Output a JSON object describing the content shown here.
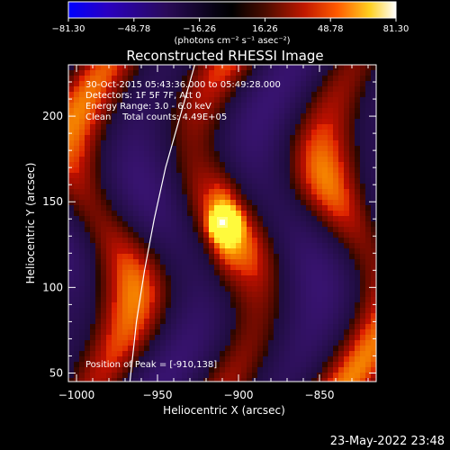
{
  "colorbar": {
    "ticks": [
      "−81.30",
      "−48.78",
      "−16.26",
      "16.26",
      "48.78",
      "81.30"
    ],
    "tick_values": [
      -81.3,
      -48.78,
      -16.26,
      16.26,
      48.78,
      81.3
    ],
    "range": [
      -81.3,
      81.3
    ],
    "unit_label": "(photons cm⁻² s⁻¹ asec⁻²)",
    "colormap": [
      "#0000ff",
      "#3a00a8",
      "#140830",
      "#000000",
      "#3a0c00",
      "#a01000",
      "#ff3000",
      "#ffa000",
      "#ffff40",
      "#ffffff"
    ]
  },
  "chart_data": {
    "type": "heatmap",
    "title": "Reconstructed RHESSI Image",
    "xlabel": "Heliocentric X (arcsec)",
    "ylabel": "Heliocentric Y (arcsec)",
    "xlim": [
      -1005,
      -815
    ],
    "ylim": [
      45,
      230
    ],
    "xticks": [
      -1000,
      -950,
      -900,
      -850
    ],
    "xtick_labels": [
      "−1000",
      "−950",
      "−900",
      "−850"
    ],
    "yticks": [
      50,
      100,
      150,
      200
    ],
    "ytick_labels": [
      "50",
      "100",
      "150",
      "200"
    ],
    "peak": {
      "x": -910,
      "y": 138,
      "value": 81.3
    },
    "limb_curve": [
      [
        -967,
        45
      ],
      [
        -963,
        80
      ],
      [
        -958,
        110
      ],
      [
        -952,
        140
      ],
      [
        -945,
        170
      ],
      [
        -936,
        200
      ],
      [
        -927,
        230
      ]
    ],
    "annotations": [
      "30-Oct-2015 05:43:36.000 to 05:49:28.000",
      "Detectors: 1F 5F 7F, Att 0",
      "Energy Range: 3.0 - 6.0 keV",
      "Clean    Total counts: 4.49E+05"
    ],
    "peak_label": "Position of Peak = [-910,138]"
  },
  "footer": {
    "timestamp": "23-May-2022 23:48"
  },
  "colors": {
    "background": "#000000",
    "text": "#ffffff",
    "limb": "#ffffff"
  }
}
